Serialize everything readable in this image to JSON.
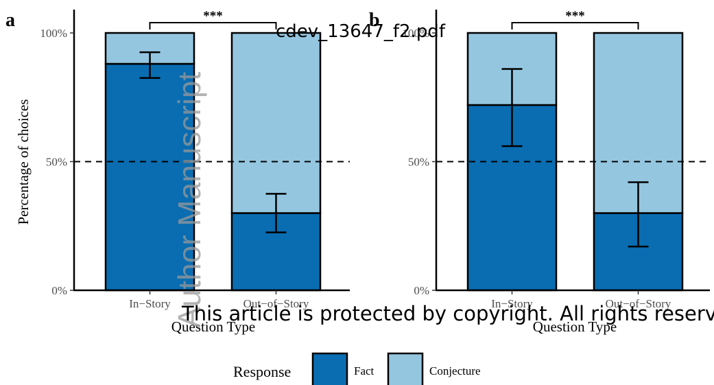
{
  "chart_data": [
    {
      "panel": "a",
      "type": "bar",
      "stacked": true,
      "categories": [
        "In−Story",
        "Out−of−Story"
      ],
      "series": [
        {
          "name": "Fact",
          "color": "#0a6db1",
          "values": [
            88,
            30
          ]
        },
        {
          "name": "Conjecture",
          "color": "#94c6e0",
          "values": [
            12,
            70
          ]
        }
      ],
      "error_bars": [
        {
          "category": "In−Story",
          "low": 82.5,
          "high": 92.5
        },
        {
          "category": "Out−of−Story",
          "low": 22.5,
          "high": 37.5
        }
      ],
      "reference_line": {
        "y": 50,
        "style": "dashed"
      },
      "significance": {
        "label": "***",
        "between": [
          "In−Story",
          "Out−of−Story"
        ]
      },
      "xlabel": "Question Type",
      "ylabel": "Percentage of choices",
      "yticks": [
        "0%",
        "50%",
        "100%"
      ],
      "ylim": [
        0,
        100
      ]
    },
    {
      "panel": "b",
      "type": "bar",
      "stacked": true,
      "categories": [
        "In−Story",
        "Out−of−Story"
      ],
      "series": [
        {
          "name": "Fact",
          "color": "#0a6db1",
          "values": [
            72,
            30
          ]
        },
        {
          "name": "Conjecture",
          "color": "#94c6e0",
          "values": [
            28,
            70
          ]
        }
      ],
      "error_bars": [
        {
          "category": "In−Story",
          "low": 56,
          "high": 86
        },
        {
          "category": "Out−of−Story",
          "low": 17,
          "high": 42
        }
      ],
      "reference_line": {
        "y": 50,
        "style": "dashed"
      },
      "significance": {
        "label": "***",
        "between": [
          "In−Story",
          "Out−of−Story"
        ]
      },
      "xlabel": "Question Type",
      "ylabel": "",
      "yticks": [
        "0%",
        "50%",
        "100%"
      ],
      "ylim": [
        0,
        100
      ]
    }
  ],
  "legend": {
    "title": "Response",
    "placement": "bottom",
    "items": [
      {
        "label": "Fact",
        "color": "#0a6db1"
      },
      {
        "label": "Conjecture",
        "color": "#94c6e0"
      }
    ]
  },
  "watermarks": {
    "filename": "cdev_13647_f2.pdf",
    "author": "Author Manuscript",
    "copyright": "This article is protected by copyright. All rights reserved"
  }
}
